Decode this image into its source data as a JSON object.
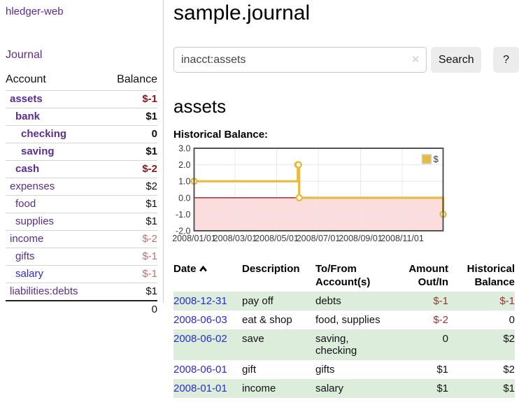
{
  "app_title": "hledger-web",
  "nav": {
    "journal": "Journal"
  },
  "sidebar": {
    "col_account": "Account",
    "col_balance": "Balance",
    "accounts": [
      {
        "name": "assets",
        "balance": "$-1",
        "indent": 1,
        "bold": true,
        "balance_tone": "negative-strong"
      },
      {
        "name": "bank",
        "balance": "$1",
        "indent": 2,
        "bold": true,
        "balance_tone": "normal"
      },
      {
        "name": "checking",
        "balance": "0",
        "indent": 3,
        "bold": true,
        "balance_tone": "normal"
      },
      {
        "name": "saving",
        "balance": "$1",
        "indent": 3,
        "bold": true,
        "balance_tone": "normal"
      },
      {
        "name": "cash",
        "balance": "$-2",
        "indent": 2,
        "bold": true,
        "balance_tone": "negative-strong"
      },
      {
        "name": "expenses",
        "balance": "$2",
        "indent": 1,
        "bold": false,
        "balance_tone": "normal"
      },
      {
        "name": "food",
        "balance": "$1",
        "indent": 2,
        "bold": false,
        "balance_tone": "normal"
      },
      {
        "name": "supplies",
        "balance": "$1",
        "indent": 2,
        "bold": false,
        "balance_tone": "normal"
      },
      {
        "name": "income",
        "balance": "$-2",
        "indent": 1,
        "bold": false,
        "balance_tone": "negative-soft"
      },
      {
        "name": "gifts",
        "balance": "$-1",
        "indent": 2,
        "bold": false,
        "balance_tone": "negative-soft"
      },
      {
        "name": "salary",
        "balance": "$-1",
        "indent": 2,
        "bold": false,
        "balance_tone": "negative-soft",
        "link_tone": "blue"
      },
      {
        "name": "liabilities:debts",
        "balance": "$1",
        "indent": 1,
        "bold": false,
        "balance_tone": "normal"
      }
    ],
    "total": "0"
  },
  "header": {
    "title": "sample.journal"
  },
  "search": {
    "value": "inacct:assets",
    "clear_icon": "✕",
    "search_button": "Search",
    "help_button": "?"
  },
  "account_page": {
    "heading": "assets",
    "chart_title": "Historical Balance:"
  },
  "chart_data": {
    "type": "line",
    "step": "after",
    "title": "Historical Balance",
    "series": [
      {
        "name": "$",
        "color": "#e6bc3e",
        "points": [
          [
            "2008-01-01",
            1
          ],
          [
            "2008-06-01",
            2
          ],
          [
            "2008-06-02",
            2
          ],
          [
            "2008-06-03",
            0
          ],
          [
            "2008-12-31",
            -1
          ]
        ]
      }
    ],
    "xlim": [
      "2008-01-01",
      "2008-12-31"
    ],
    "ylim": [
      -2,
      3
    ],
    "x_tick_dates": [
      "2008-01-01",
      "2008-03-01",
      "2008-05-01",
      "2008-07-01",
      "2008-09-01",
      "2008-11-01"
    ],
    "x_tick_labels": [
      "2008/01/01",
      "2008/03/01",
      "2008/05/01",
      "2008/07/01",
      "2008/09/01",
      "2008/11/01"
    ],
    "y_ticks": [
      "3.0",
      "2.0",
      "1.0",
      "0.0",
      "-1.0",
      "-2.0"
    ],
    "legend": {
      "label": "$",
      "position": "top-right"
    },
    "grid": true,
    "negative_region_color": "#fbdddd",
    "zero_line_color": "#a03030",
    "frame_color": "#545454",
    "grid_color": "#e8e8e8"
  },
  "register": {
    "columns": [
      {
        "label": "Date",
        "sorted": "asc"
      },
      {
        "label": "Description"
      },
      {
        "label": "To/From Account(s)"
      },
      {
        "label": "Amount Out/In",
        "align": "right"
      },
      {
        "label": "Historical Balance",
        "align": "right"
      }
    ],
    "rows": [
      {
        "date": "2008-12-31",
        "description": "pay off",
        "accounts": "debts",
        "amount": "$-1",
        "balance": "$-1"
      },
      {
        "date": "2008-06-03",
        "description": "eat & shop",
        "accounts": "food, supplies",
        "amount": "$-2",
        "balance": "0"
      },
      {
        "date": "2008-06-02",
        "description": "save",
        "accounts": "saving, checking",
        "amount": "0",
        "balance": "$2"
      },
      {
        "date": "2008-06-01",
        "description": "gift",
        "accounts": "gifts",
        "amount": "$1",
        "balance": "$2"
      },
      {
        "date": "2008-01-01",
        "description": "income",
        "accounts": "salary",
        "amount": "$1",
        "balance": "$1"
      }
    ]
  }
}
